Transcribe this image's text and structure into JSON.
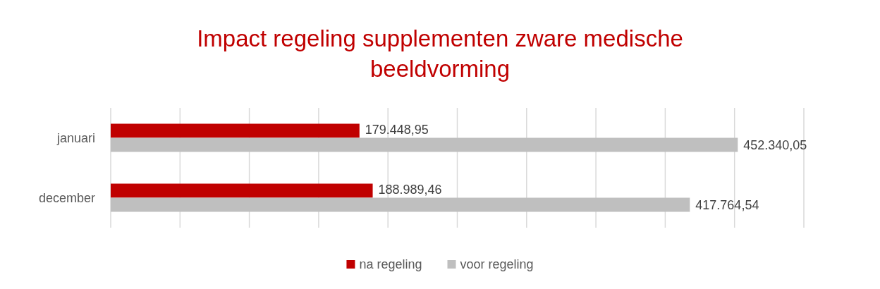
{
  "chart_data": {
    "type": "bar",
    "orientation": "horizontal",
    "title": "Impact regeling supplementen zware medische beeldvorming",
    "categories": [
      "januari",
      "december"
    ],
    "series": [
      {
        "name": "na regeling",
        "color": "#c00000",
        "values": [
          179448.95,
          188989.46
        ],
        "value_labels": [
          "179.448,95",
          "188.989,46"
        ]
      },
      {
        "name": "voor regeling",
        "color": "#bfbfbf",
        "values": [
          452340.05,
          417764.54
        ],
        "value_labels": [
          "452.340,05",
          "417.764,54"
        ]
      }
    ],
    "xlim": [
      0,
      500000
    ],
    "xticks": [
      {
        "value": 0,
        "label": null
      },
      {
        "value": 50000,
        "label": null
      },
      {
        "value": 100000,
        "label": null
      },
      {
        "value": 150000,
        "label": null
      },
      {
        "value": 200000,
        "label": null
      },
      {
        "value": 250000,
        "label": null
      },
      {
        "value": 300000,
        "label": null
      },
      {
        "value": 350000,
        "label": null
      },
      {
        "value": 400000,
        "label": null
      },
      {
        "value": 450000,
        "label": null
      },
      {
        "value": 500000,
        "label": null
      }
    ],
    "tick_labels": "y",
    "grid": "x",
    "legend": "bottom"
  }
}
